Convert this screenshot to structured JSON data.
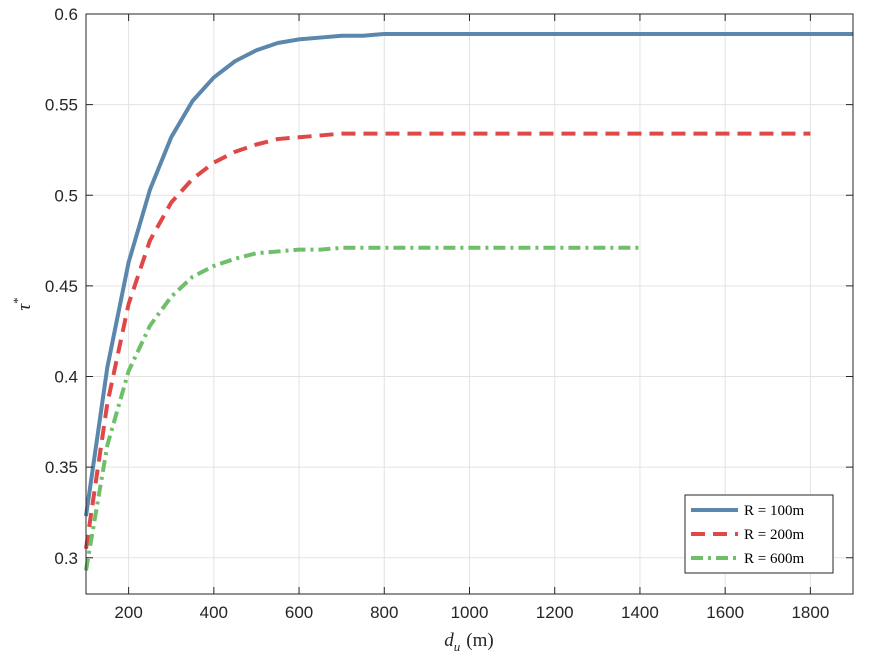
{
  "chart_data": {
    "type": "line",
    "title": "",
    "xlabel": "d_u (m)",
    "xlabel_main": "d",
    "xlabel_sub": "u",
    "xlabel_unit": "(m)",
    "ylabel": "τ*",
    "ylabel_main": "τ",
    "ylabel_sup": "*",
    "xlim": [
      100,
      1900
    ],
    "ylim": [
      0.28,
      0.6
    ],
    "xticks": [
      200,
      400,
      600,
      800,
      1000,
      1200,
      1400,
      1600,
      1800
    ],
    "xtick_labels": [
      "200",
      "400",
      "600",
      "800",
      "1000",
      "1200",
      "1400",
      "1600",
      "1800"
    ],
    "yticks": [
      0.3,
      0.35,
      0.4,
      0.45,
      0.5,
      0.55,
      0.6
    ],
    "ytick_labels": [
      "0.3",
      "0.35",
      "0.4",
      "0.45",
      "0.5",
      "0.55",
      "0.6"
    ],
    "grid": true,
    "legend_position": "bottom-right",
    "series": [
      {
        "name": "R = 100m",
        "legend_label": "R = 100m",
        "color": "#5b87ad",
        "dash": "solid",
        "x": [
          100,
          150,
          200,
          250,
          300,
          350,
          400,
          450,
          500,
          550,
          600,
          650,
          700,
          750,
          800,
          900,
          1000,
          1200,
          1400,
          1600,
          1800,
          1900
        ],
        "y": [
          0.323,
          0.405,
          0.463,
          0.503,
          0.532,
          0.552,
          0.565,
          0.574,
          0.58,
          0.584,
          0.586,
          0.587,
          0.588,
          0.588,
          0.589,
          0.589,
          0.589,
          0.589,
          0.589,
          0.589,
          0.589,
          0.589
        ]
      },
      {
        "name": "R = 200m",
        "legend_label": "R = 200m",
        "color": "#e04848",
        "dash": "dashed",
        "x": [
          100,
          150,
          200,
          250,
          300,
          350,
          400,
          450,
          500,
          550,
          600,
          650,
          700,
          800,
          1000,
          1200,
          1400,
          1600,
          1800
        ],
        "y": [
          0.305,
          0.385,
          0.44,
          0.475,
          0.496,
          0.509,
          0.518,
          0.524,
          0.528,
          0.531,
          0.532,
          0.533,
          0.534,
          0.534,
          0.534,
          0.534,
          0.534,
          0.534,
          0.534
        ]
      },
      {
        "name": "R = 600m",
        "legend_label": "R = 600m",
        "color": "#6fbf6a",
        "dash": "dashdot",
        "x": [
          100,
          150,
          200,
          250,
          300,
          350,
          400,
          450,
          500,
          550,
          600,
          650,
          700,
          800,
          1000,
          1200,
          1400
        ],
        "y": [
          0.293,
          0.362,
          0.403,
          0.428,
          0.444,
          0.455,
          0.461,
          0.465,
          0.468,
          0.469,
          0.47,
          0.47,
          0.471,
          0.471,
          0.471,
          0.471,
          0.471
        ]
      }
    ]
  }
}
